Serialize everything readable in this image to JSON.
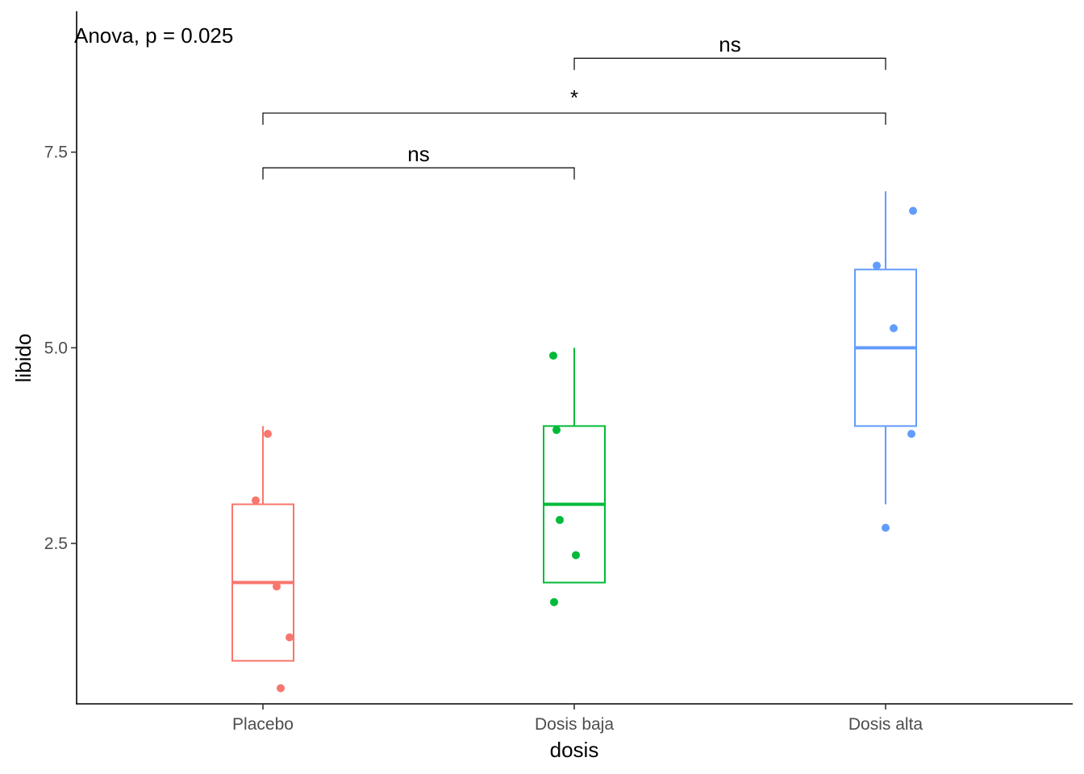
{
  "chart_data": {
    "type": "boxplot",
    "title": "",
    "xlabel": "dosis",
    "ylabel": "libido",
    "ylim": [
      0.45,
      9.3
    ],
    "yticks": [
      2.5,
      5.0,
      7.5
    ],
    "ytick_labels": [
      "2.5",
      "5.0",
      "7.5"
    ],
    "categories": [
      "Placebo",
      "Dosis baja",
      "Dosis alta"
    ],
    "annotation": "Anova, p = 0.025",
    "grid": false,
    "legend": "none",
    "groups": [
      {
        "name": "Placebo",
        "color": "#F8766D",
        "min": 1,
        "q1": 1,
        "median": 2,
        "q3": 3,
        "max": 4,
        "points": [
          3.9,
          3.05,
          1.95,
          1.3,
          0.65
        ]
      },
      {
        "name": "Dosis baja",
        "color": "#00BA38",
        "min": 2,
        "q1": 2,
        "median": 3,
        "q3": 4,
        "max": 5,
        "points": [
          4.9,
          3.95,
          2.8,
          2.35,
          1.75
        ]
      },
      {
        "name": "Dosis alta",
        "color": "#619CFF",
        "min": 3,
        "q1": 4,
        "median": 5,
        "q3": 6,
        "max": 7,
        "points": [
          6.75,
          6.05,
          5.25,
          3.9,
          2.7
        ]
      }
    ],
    "comparisons": [
      {
        "from": "Placebo",
        "to": "Dosis baja",
        "label": "ns",
        "y": 7.3,
        "tip": 7.15
      },
      {
        "from": "Placebo",
        "to": "Dosis alta",
        "label": "*",
        "y": 8.0,
        "tip": 7.85
      },
      {
        "from": "Dosis baja",
        "to": "Dosis alta",
        "label": "ns",
        "y": 8.7,
        "tip": 8.55
      }
    ]
  }
}
